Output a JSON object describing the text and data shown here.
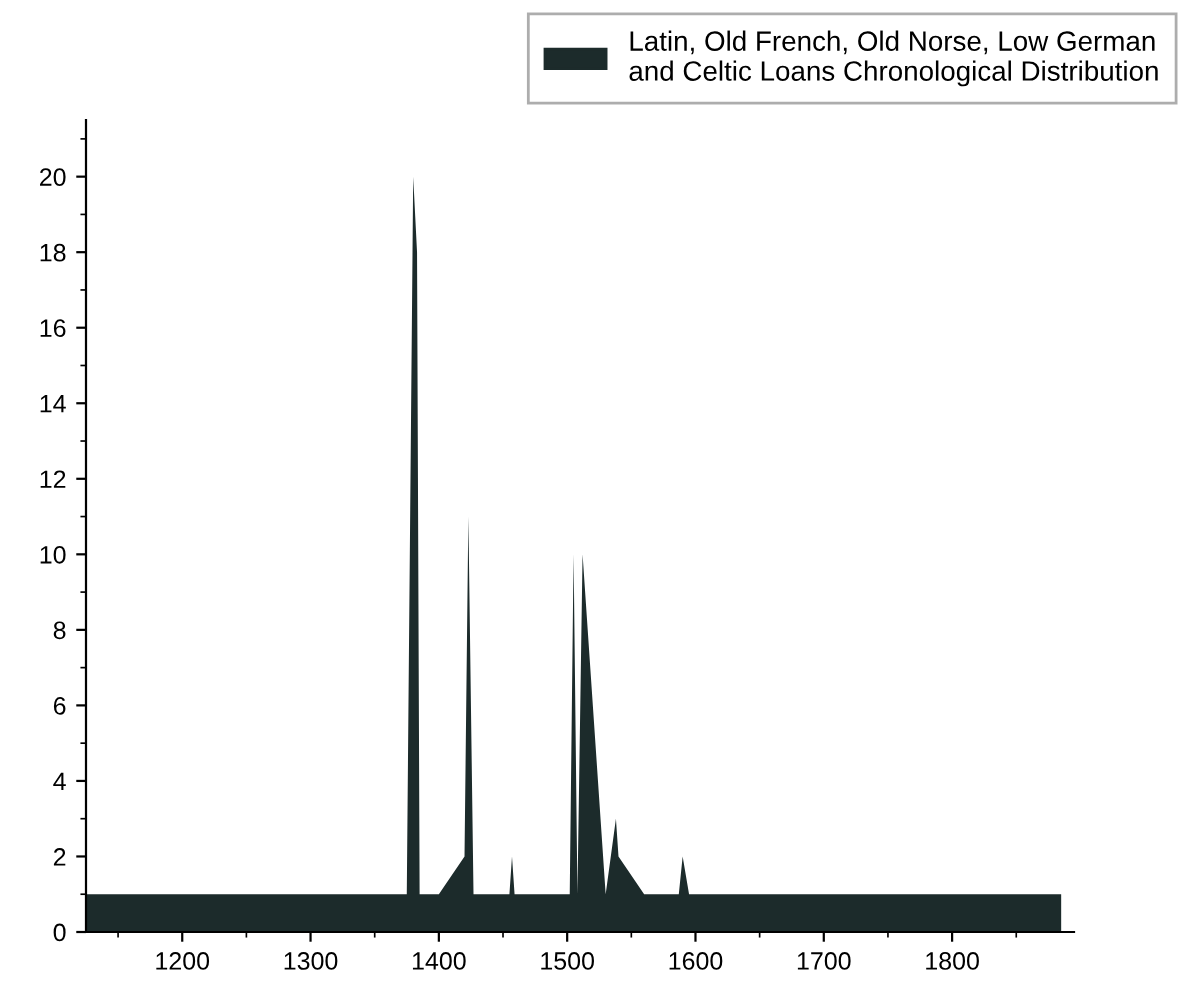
{
  "chart_data": {
    "type": "area",
    "series": [
      {
        "name": "Latin, Old French, Old Norse, Low German\nand Celtic Loans Chronological Distribution",
        "color": "#1c2b2b",
        "x": [
          1125,
          1375,
          1380,
          1383,
          1385,
          1400,
          1420,
          1423,
          1427,
          1455,
          1457,
          1459,
          1502,
          1505,
          1508,
          1512,
          1530,
          1538,
          1540,
          1560,
          1587,
          1590,
          1595,
          1885
        ],
        "values": [
          1,
          1,
          20,
          18,
          1,
          1,
          2,
          11,
          1,
          1,
          2,
          1,
          1,
          10,
          1,
          10,
          1,
          3,
          2,
          1,
          1,
          2,
          1,
          1
        ]
      }
    ],
    "xlim": [
      1125,
      1895
    ],
    "xticks": [
      1200,
      1300,
      1400,
      1500,
      1600,
      1700,
      1800
    ],
    "ylim": [
      0,
      21.5
    ],
    "yticks": [
      0,
      2,
      4,
      6,
      8,
      10,
      12,
      14,
      16,
      18,
      20
    ],
    "grid": false,
    "legend": "top right"
  }
}
